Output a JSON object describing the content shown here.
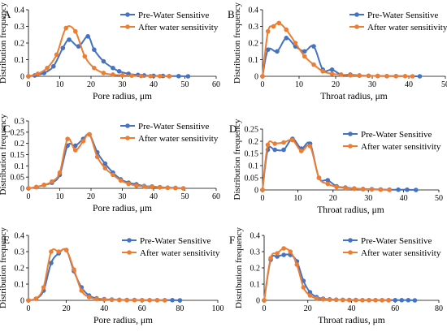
{
  "legend": {
    "pre_label": "Pre-Water Sensitive",
    "after_label": "After water sensitivity"
  },
  "colors": {
    "pre": "#4472C4",
    "after": "#ED7D31",
    "axis": "#000000"
  },
  "chart_data": [
    {
      "type": "line",
      "panel_label": "A",
      "xlabel": "Pore radius, μm",
      "ylabel": "Distribution frequency",
      "xlim": [
        0,
        60
      ],
      "ylim": [
        0,
        0.4
      ],
      "xticks": [
        0,
        10,
        20,
        30,
        40,
        50,
        60
      ],
      "yticks": [
        0,
        0.1,
        0.2,
        0.3,
        0.4
      ],
      "ytick_labels": [
        "0",
        "0.1",
        "0.2",
        "0.3",
        "0.4"
      ],
      "legend_position": "top-right",
      "series": [
        {
          "name": "Pre-Water Sensitive",
          "x": [
            0,
            2,
            5,
            8,
            11,
            13,
            16,
            19,
            21,
            24,
            27,
            29,
            32,
            35,
            37,
            40,
            43,
            45,
            48,
            51
          ],
          "y": [
            0,
            0.005,
            0.02,
            0.06,
            0.17,
            0.22,
            0.18,
            0.24,
            0.16,
            0.09,
            0.05,
            0.03,
            0.015,
            0.008,
            0.005,
            0.003,
            0.002,
            0.001,
            0.001,
            0
          ]
        },
        {
          "name": "After water sensitivity",
          "x": [
            0,
            3,
            6,
            9,
            12,
            15,
            18,
            21,
            24,
            27,
            30,
            33,
            36,
            39,
            42,
            45
          ],
          "y": [
            0,
            0.015,
            0.05,
            0.13,
            0.29,
            0.27,
            0.12,
            0.05,
            0.02,
            0.01,
            0.006,
            0.004,
            0.002,
            0.001,
            0.001,
            0
          ]
        }
      ]
    },
    {
      "type": "line",
      "panel_label": "B",
      "xlabel": "Throat radius, μm",
      "ylabel": "Distribution frequency",
      "xlim": [
        0,
        50
      ],
      "ylim": [
        0,
        0.4
      ],
      "xticks": [
        0,
        10,
        20,
        30,
        40,
        50
      ],
      "yticks": [
        0,
        0.1,
        0.2,
        0.3,
        0.4
      ],
      "ytick_labels": [
        "0",
        "0.1",
        "0.2",
        "0.3",
        "0.4"
      ],
      "legend_position": "top-right",
      "series": [
        {
          "name": "Pre-Water Sensitive",
          "x": [
            0,
            1.5,
            4,
            6.5,
            9,
            11.5,
            14,
            16.5,
            19,
            21.5,
            24,
            26.5,
            29,
            31.5,
            34,
            36.5,
            43
          ],
          "y": [
            0,
            0.16,
            0.15,
            0.23,
            0.18,
            0.15,
            0.18,
            0.04,
            0.04,
            0.01,
            0.01,
            0.005,
            0.003,
            0.002,
            0.001,
            0.001,
            0
          ]
        },
        {
          "name": "After water sensitivity",
          "x": [
            0,
            1.5,
            3,
            4.5,
            6.5,
            9,
            11.5,
            14,
            16.5,
            19,
            21.5,
            24,
            26.5,
            29,
            31.5,
            34,
            36.5,
            39,
            41
          ],
          "y": [
            0,
            0.27,
            0.3,
            0.32,
            0.28,
            0.2,
            0.12,
            0.07,
            0.03,
            0.015,
            0.01,
            0.006,
            0.004,
            0.003,
            0.002,
            0.001,
            0.001,
            0.001,
            0
          ]
        }
      ]
    },
    {
      "type": "line",
      "panel_label": "C",
      "xlabel": "Pore radius, μm",
      "ylabel": "Distribution frequency",
      "xlim": [
        0,
        60
      ],
      "ylim": [
        0,
        0.3
      ],
      "xticks": [
        0,
        10,
        20,
        30,
        40,
        50,
        60
      ],
      "yticks": [
        0,
        0.05,
        0.1,
        0.15,
        0.2,
        0.25,
        0.3
      ],
      "ytick_labels": [
        "0",
        "0.05",
        "0.1",
        "0.15",
        "0.2",
        "0.25",
        "0.3"
      ],
      "legend_position": "top-right",
      "series": [
        {
          "name": "Pre-Water Sensitive",
          "x": [
            0,
            2.5,
            5,
            7.5,
            10,
            12.5,
            15,
            17.5,
            19.5,
            22,
            24.5,
            27,
            29.5,
            32,
            34.5,
            37,
            39.5,
            42,
            44.5,
            47,
            49.5
          ],
          "y": [
            0,
            0.005,
            0.015,
            0.025,
            0.06,
            0.19,
            0.19,
            0.22,
            0.24,
            0.16,
            0.11,
            0.07,
            0.04,
            0.025,
            0.018,
            0.01,
            0.008,
            0.005,
            0.003,
            0.002,
            0
          ]
        },
        {
          "name": "After water sensitivity",
          "x": [
            0,
            2.5,
            5,
            7.5,
            10,
            12.5,
            15,
            17.5,
            19.5,
            22,
            24.5,
            27,
            29.5,
            32,
            34.5,
            37,
            39.5,
            42,
            44.5,
            47,
            49.5
          ],
          "y": [
            0,
            0.006,
            0.015,
            0.03,
            0.07,
            0.22,
            0.17,
            0.21,
            0.24,
            0.14,
            0.09,
            0.06,
            0.035,
            0.02,
            0.012,
            0.008,
            0.006,
            0.004,
            0.002,
            0.001,
            0
          ]
        }
      ]
    },
    {
      "type": "line",
      "panel_label": "D",
      "xlabel": "Throat radius, μm",
      "ylabel": "Distribution frequency",
      "xlim": [
        0,
        50
      ],
      "ylim": [
        0,
        0.25
      ],
      "xticks": [
        0,
        10,
        20,
        30,
        40,
        50
      ],
      "yticks": [
        0,
        0.05,
        0.1,
        0.15,
        0.2,
        0.25
      ],
      "ytick_labels": [
        "0",
        "0.05",
        "0.1",
        "0.15",
        "0.2",
        "0.25"
      ],
      "legend_position": "top-right",
      "series": [
        {
          "name": "Pre-Water Sensitive",
          "x": [
            0,
            1.5,
            3.5,
            6,
            8.5,
            11,
            13.5,
            16,
            18.5,
            21,
            23.5,
            26,
            28.5,
            31,
            33.5,
            36,
            38.5,
            41,
            43.5
          ],
          "y": [
            0,
            0.165,
            0.165,
            0.165,
            0.21,
            0.17,
            0.19,
            0.05,
            0.04,
            0.015,
            0.01,
            0.006,
            0.004,
            0.003,
            0.002,
            0.001,
            0.001,
            0.001,
            0
          ]
        },
        {
          "name": "After water sensitivity",
          "x": [
            0,
            1.5,
            3.5,
            6,
            8.5,
            11,
            13.5,
            16,
            18.5,
            21,
            23.5,
            26,
            28.5,
            31,
            33.5,
            36
          ],
          "y": [
            0,
            0.185,
            0.19,
            0.195,
            0.205,
            0.16,
            0.18,
            0.05,
            0.025,
            0.012,
            0.008,
            0.005,
            0.003,
            0.002,
            0.001,
            0
          ]
        }
      ]
    },
    {
      "type": "line",
      "panel_label": "E",
      "xlabel": "Pore radius, μm",
      "ylabel": "Distribution frequency",
      "xlim": [
        0,
        100
      ],
      "ylim": [
        0,
        0.4
      ],
      "xticks": [
        0,
        20,
        40,
        60,
        80,
        100
      ],
      "yticks": [
        0,
        0.1,
        0.2,
        0.3,
        0.4
      ],
      "ytick_labels": [
        "0",
        "0.1",
        "0.2",
        "0.3",
        "0.4"
      ],
      "legend_position": "top-right",
      "series": [
        {
          "name": "Pre-Water Sensitive",
          "x": [
            0,
            4,
            8,
            12,
            16,
            20,
            24,
            28,
            32,
            36,
            40,
            44,
            48,
            52,
            56,
            60,
            64,
            68,
            72,
            76,
            80
          ],
          "y": [
            0,
            0.01,
            0.06,
            0.23,
            0.29,
            0.31,
            0.18,
            0.08,
            0.03,
            0.012,
            0.007,
            0.005,
            0.003,
            0.002,
            0.002,
            0.001,
            0.001,
            0.001,
            0.001,
            0.001,
            0
          ]
        },
        {
          "name": "After water sensitivity",
          "x": [
            0,
            4,
            8,
            12,
            16,
            20,
            24,
            28,
            32,
            36,
            40,
            44,
            48,
            52,
            56,
            60,
            64,
            68,
            72
          ],
          "y": [
            0,
            0.01,
            0.08,
            0.3,
            0.3,
            0.31,
            0.19,
            0.06,
            0.02,
            0.008,
            0.005,
            0.003,
            0.002,
            0.001,
            0.001,
            0.001,
            0.001,
            0.001,
            0
          ]
        }
      ]
    },
    {
      "type": "line",
      "panel_label": "F",
      "xlabel": "Throat radius, μm",
      "ylabel": "Distribution frequency",
      "xlim": [
        0,
        80
      ],
      "ylim": [
        0,
        0.4
      ],
      "xticks": [
        0,
        20,
        40,
        60,
        80
      ],
      "yticks": [
        0,
        0.1,
        0.2,
        0.3,
        0.4
      ],
      "ytick_labels": [
        "0",
        "0.1",
        "0.2",
        "0.3",
        "0.4"
      ],
      "legend_position": "top-right",
      "series": [
        {
          "name": "Pre-Water Sensitive",
          "x": [
            0,
            3,
            6,
            9,
            12,
            15,
            18,
            21,
            24,
            27,
            30,
            33,
            36,
            39,
            42,
            45,
            48,
            51,
            54,
            57,
            60,
            63,
            66,
            69
          ],
          "y": [
            0,
            0.25,
            0.27,
            0.28,
            0.28,
            0.24,
            0.12,
            0.05,
            0.02,
            0.01,
            0.006,
            0.004,
            0.003,
            0.002,
            0.002,
            0.001,
            0.001,
            0.001,
            0.001,
            0.001,
            0.001,
            0.001,
            0.001,
            0
          ]
        },
        {
          "name": "After water sensitivity",
          "x": [
            0,
            3,
            6,
            9,
            12,
            15,
            18,
            21,
            24,
            27,
            30,
            33,
            36,
            39,
            42,
            45,
            48,
            51,
            54,
            57
          ],
          "y": [
            0,
            0.26,
            0.29,
            0.32,
            0.3,
            0.22,
            0.08,
            0.03,
            0.012,
            0.006,
            0.004,
            0.003,
            0.002,
            0.001,
            0.001,
            0.001,
            0.001,
            0.001,
            0.001,
            0
          ]
        }
      ]
    }
  ]
}
